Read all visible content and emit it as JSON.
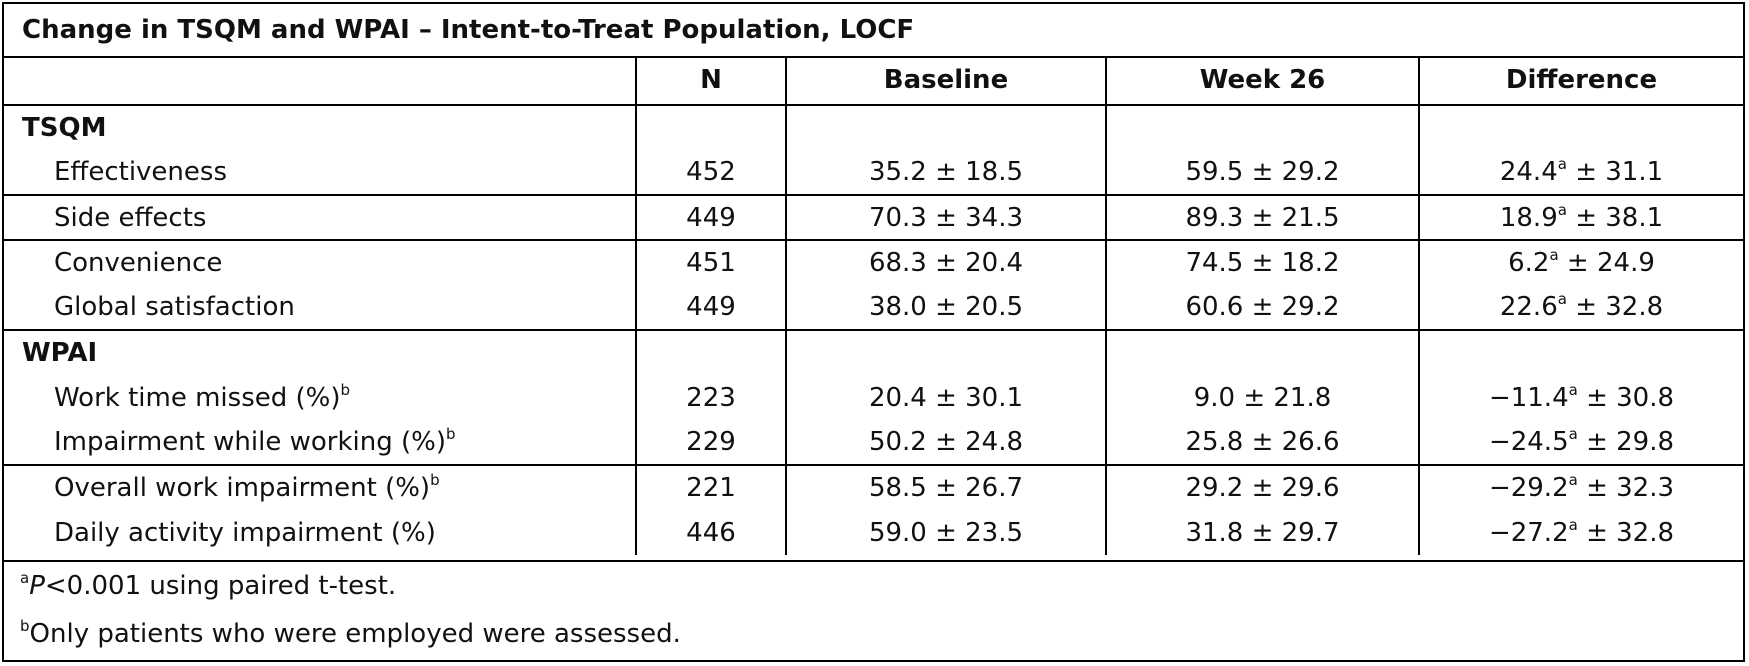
{
  "title": "Change in TSQM and WPAI – Intent-to-Treat Population, LOCF",
  "columns": [
    "",
    "N",
    "Baseline",
    "Week 26",
    "Difference"
  ],
  "sections": [
    {
      "name": "TSQM",
      "rows": [
        {
          "label": "Effectiveness",
          "label_sup": "",
          "n": "452",
          "baseline": "35.2 ± 18.5",
          "week26": "59.5 ± 29.2",
          "diff_value": "24.4",
          "diff_sup": "a",
          "diff_sd": " ± 31.1"
        },
        {
          "label": "Side effects",
          "label_sup": "",
          "n": "449",
          "baseline": "70.3 ± 34.3",
          "week26": "89.3 ± 21.5",
          "diff_value": "18.9",
          "diff_sup": "a",
          "diff_sd": " ± 38.1"
        },
        {
          "label": "Convenience",
          "label_sup": "",
          "n": "451",
          "baseline": "68.3 ± 20.4",
          "week26": "74.5 ± 18.2",
          "diff_value": "6.2",
          "diff_sup": "a",
          "diff_sd": " ± 24.9"
        },
        {
          "label": "Global satisfaction",
          "label_sup": "",
          "n": "449",
          "baseline": "38.0 ± 20.5",
          "week26": "60.6 ± 29.2",
          "diff_value": "22.6",
          "diff_sup": "a",
          "diff_sd": " ± 32.8"
        }
      ]
    },
    {
      "name": "WPAI",
      "rows": [
        {
          "label": "Work time missed (%)",
          "label_sup": "b",
          "n": "223",
          "baseline": "20.4 ± 30.1",
          "week26": "9.0 ± 21.8",
          "diff_value": "−11.4",
          "diff_sup": "a",
          "diff_sd": " ± 30.8"
        },
        {
          "label": "Impairment while working (%)",
          "label_sup": "b",
          "n": "229",
          "baseline": "50.2 ± 24.8",
          "week26": "25.8 ± 26.6",
          "diff_value": "−24.5",
          "diff_sup": "a",
          "diff_sd": " ± 29.8"
        },
        {
          "label": "Overall work impairment (%)",
          "label_sup": "b",
          "n": "221",
          "baseline": "58.5 ± 26.7",
          "week26": "29.2 ± 29.6",
          "diff_value": "−29.2",
          "diff_sup": "a",
          "diff_sd": " ± 32.3"
        },
        {
          "label": "Daily activity impairment (%)",
          "label_sup": "",
          "n": "446",
          "baseline": "59.0 ± 23.5",
          "week26": "31.8 ± 29.7",
          "diff_value": "−27.2",
          "diff_sup": "a",
          "diff_sd": " ± 32.8"
        }
      ]
    }
  ],
  "footnotes": [
    {
      "sup": "a",
      "italic": "P",
      "text": "<0.001 using paired t-test."
    },
    {
      "sup": "b",
      "italic": "",
      "text": "Only patients who were employed were assessed."
    }
  ]
}
